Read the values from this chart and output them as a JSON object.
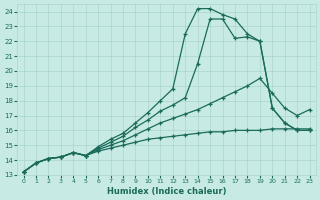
{
  "xlabel": "Humidex (Indice chaleur)",
  "bg_color": "#c8eae4",
  "grid_color": "#aad4cc",
  "line_color": "#1a6b5a",
  "xlim": [
    -0.5,
    23.5
  ],
  "ylim": [
    13,
    24.5
  ],
  "xticks": [
    0,
    1,
    2,
    3,
    4,
    5,
    6,
    7,
    8,
    9,
    10,
    11,
    12,
    13,
    14,
    15,
    16,
    17,
    18,
    19,
    20,
    21,
    22,
    23
  ],
  "yticks": [
    13,
    14,
    15,
    16,
    17,
    18,
    19,
    20,
    21,
    22,
    23,
    24
  ],
  "lines": [
    {
      "x": [
        0,
        1,
        2,
        3,
        4,
        5,
        6,
        7,
        8,
        9,
        10,
        11,
        12,
        13,
        14,
        15,
        16,
        17,
        18,
        19,
        20,
        21,
        22,
        23
      ],
      "y": [
        13.2,
        13.8,
        14.1,
        14.2,
        14.5,
        14.3,
        14.6,
        14.8,
        15.0,
        15.2,
        15.4,
        15.5,
        15.6,
        15.7,
        15.8,
        15.9,
        15.9,
        16.0,
        16.0,
        16.0,
        16.1,
        16.1,
        16.1,
        16.1
      ]
    },
    {
      "x": [
        0,
        1,
        2,
        3,
        4,
        5,
        6,
        7,
        8,
        9,
        10,
        11,
        12,
        13,
        14,
        15,
        16,
        17,
        18,
        19,
        20,
        21,
        22,
        23
      ],
      "y": [
        13.2,
        13.8,
        14.1,
        14.2,
        14.5,
        14.3,
        14.7,
        15.0,
        15.3,
        15.7,
        16.1,
        16.5,
        16.8,
        17.1,
        17.4,
        17.8,
        18.2,
        18.6,
        19.0,
        19.5,
        18.5,
        17.5,
        17.0,
        17.4
      ]
    },
    {
      "x": [
        0,
        1,
        2,
        3,
        4,
        5,
        6,
        7,
        8,
        9,
        10,
        11,
        12,
        13,
        14,
        15,
        16,
        17,
        18,
        19,
        20,
        21,
        22,
        23
      ],
      "y": [
        13.2,
        13.8,
        14.1,
        14.2,
        14.5,
        14.3,
        14.8,
        15.2,
        15.6,
        16.2,
        16.7,
        17.3,
        17.7,
        18.2,
        20.5,
        23.5,
        23.5,
        22.2,
        22.3,
        22.0,
        17.5,
        16.5,
        16.0,
        16.0
      ]
    },
    {
      "x": [
        0,
        1,
        2,
        3,
        4,
        5,
        6,
        7,
        8,
        9,
        10,
        11,
        12,
        13,
        14,
        15,
        16,
        17,
        18,
        19,
        20,
        21,
        22,
        23
      ],
      "y": [
        13.2,
        13.8,
        14.1,
        14.2,
        14.5,
        14.3,
        14.9,
        15.4,
        15.8,
        16.5,
        17.2,
        18.0,
        18.8,
        22.5,
        24.2,
        24.2,
        23.8,
        23.5,
        22.5,
        22.0,
        17.5,
        16.5,
        16.0,
        16.0
      ]
    }
  ]
}
